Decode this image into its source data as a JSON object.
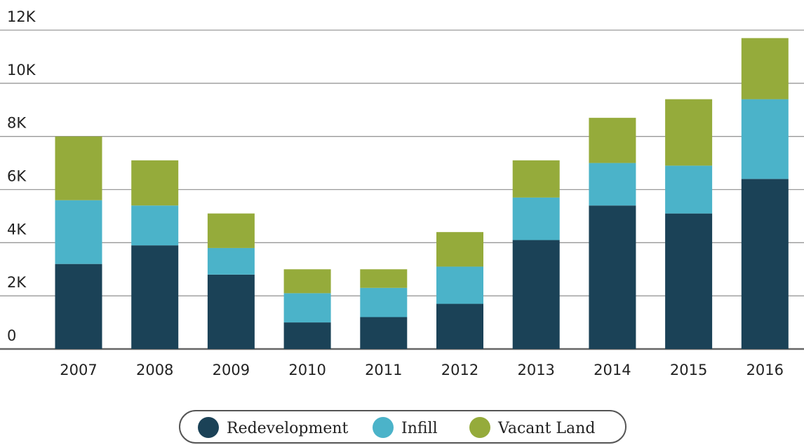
{
  "chart_data": {
    "type": "bar",
    "stacked": true,
    "categories": [
      "2007",
      "2008",
      "2009",
      "2010",
      "2011",
      "2012",
      "2013",
      "2014",
      "2015",
      "2016"
    ],
    "series": [
      {
        "name": "Redevelopment",
        "color": "#1b4257",
        "values": [
          3200,
          3900,
          2800,
          1000,
          1200,
          1700,
          4100,
          5400,
          5100,
          6400
        ]
      },
      {
        "name": "Infill",
        "color": "#4bb3c9",
        "values": [
          2400,
          1500,
          1000,
          1100,
          1100,
          1400,
          1600,
          1600,
          1800,
          3000
        ]
      },
      {
        "name": "Vacant Land",
        "color": "#95ab3b",
        "values": [
          2400,
          1700,
          1300,
          900,
          700,
          1300,
          1400,
          1700,
          2500,
          2300
        ]
      }
    ],
    "ylim": [
      0,
      12000
    ],
    "yticks": [
      0,
      {
        "value": 2000,
        "label": "2K"
      },
      {
        "value": 4000,
        "label": "4K"
      },
      {
        "value": 6000,
        "label": "6K"
      },
      {
        "value": 8000,
        "label": "8K"
      },
      {
        "value": 10000,
        "label": "10K"
      },
      {
        "value": 12000,
        "label": "12K"
      }
    ],
    "grid": true,
    "legend": "bottom"
  }
}
